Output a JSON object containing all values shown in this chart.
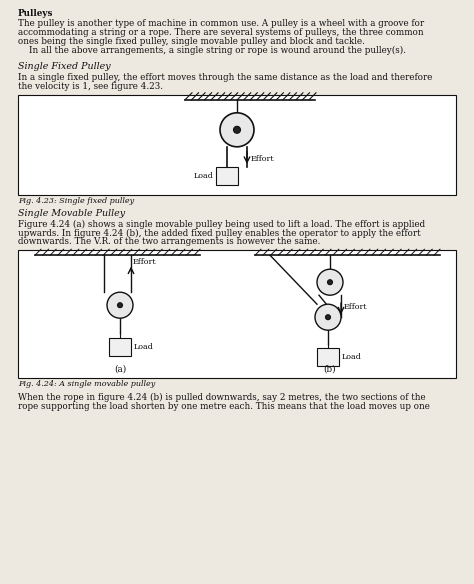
{
  "bg_color": "#ede8e0",
  "title": "Pulleys",
  "para1_lines": [
    "The pulley is another type of machine in common use. A pulley is a wheel with a groove for",
    "accommodating a string or a rope. There are several systems of pulleys, the three common",
    "ones being the single fixed pulley, single movable pulley and block and tackle.",
    "    In all the above arrangements, a single string or rope is wound around the pulley(s)."
  ],
  "heading2": "Single Fixed Pulley",
  "para2_lines": [
    "In a single fixed pulley, the effort moves through the same distance as the load and therefore",
    "the velocity is 1, see figure 4.23."
  ],
  "fig1_caption": "Fig. 4.23: Single fixed pulley",
  "heading3": "Single Movable Pulley",
  "para3_lines": [
    "Figure 4.24 (a) shows a single movable pulley being used to lift a load. The effort is applied",
    "upwards. In figure 4.24 (b), the added fixed pulley enables the operator to apply the effort",
    "downwards. The V.R. of the two arrangements is however the same."
  ],
  "fig2_caption": "Fig. 4.24: A single movable pulley",
  "para4_lines": [
    "When the rope in figure 4.24 (b) is pulled downwards, say 2 metres, the two sections of the",
    "rope supporting the load shorten by one metre each. This means that the load moves up one"
  ],
  "text_color": "#111111",
  "diagram_bg": "#ffffff",
  "line_color": "#111111"
}
